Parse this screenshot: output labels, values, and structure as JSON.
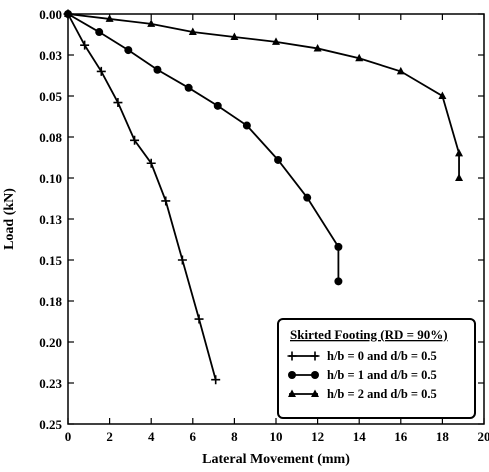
{
  "chart_data": {
    "type": "line",
    "title": "",
    "xlabel": "Lateral Movement (mm)",
    "ylabel": "Load (kN)",
    "xlim": [
      0,
      20
    ],
    "ylim": [
      0,
      0.25
    ],
    "y_inverted": true,
    "x_ticks": [
      0,
      2,
      4,
      6,
      8,
      10,
      12,
      14,
      16,
      18,
      20
    ],
    "y_ticks": [
      0,
      0.025,
      0.05,
      0.075,
      0.1,
      0.125,
      0.15,
      0.175,
      0.2,
      0.225,
      0.25
    ],
    "y_tick_labels": [
      "0.00",
      "0.03",
      "0.05",
      "0.08",
      "0.10",
      "0.13",
      "0.15",
      "0.18",
      "0.20",
      "0.23",
      "0.25"
    ],
    "grid": false,
    "legend": {
      "title": "Skirted Footing (RD = 90%)",
      "placement": "bottom-right"
    },
    "series": [
      {
        "name": "h/b = 0 and d/b = 0.5",
        "marker": "plus",
        "points": [
          [
            0,
            0
          ],
          [
            0.8,
            0.019
          ],
          [
            1.6,
            0.035
          ],
          [
            2.4,
            0.054
          ],
          [
            3.2,
            0.077
          ],
          [
            4.0,
            0.091
          ],
          [
            4.7,
            0.114
          ],
          [
            5.5,
            0.15
          ],
          [
            6.3,
            0.186
          ],
          [
            7.1,
            0.223
          ]
        ]
      },
      {
        "name": "h/b = 1 and d/b = 0.5",
        "marker": "circle",
        "points": [
          [
            0,
            0
          ],
          [
            1.5,
            0.011
          ],
          [
            2.9,
            0.022
          ],
          [
            4.3,
            0.034
          ],
          [
            5.8,
            0.045
          ],
          [
            7.2,
            0.056
          ],
          [
            8.6,
            0.068
          ],
          [
            10.1,
            0.089
          ],
          [
            11.5,
            0.112
          ],
          [
            13.0,
            0.142
          ],
          [
            13.0,
            0.163
          ]
        ]
      },
      {
        "name": "h/b = 2 and d/b = 0.5",
        "marker": "triangle",
        "points": [
          [
            0,
            0
          ],
          [
            2,
            0.003
          ],
          [
            4,
            0.006
          ],
          [
            6,
            0.011
          ],
          [
            8,
            0.014
          ],
          [
            10,
            0.017
          ],
          [
            12,
            0.021
          ],
          [
            14,
            0.027
          ],
          [
            16,
            0.035
          ],
          [
            18,
            0.05
          ],
          [
            18.8,
            0.085
          ],
          [
            18.8,
            0.1
          ]
        ]
      }
    ]
  }
}
